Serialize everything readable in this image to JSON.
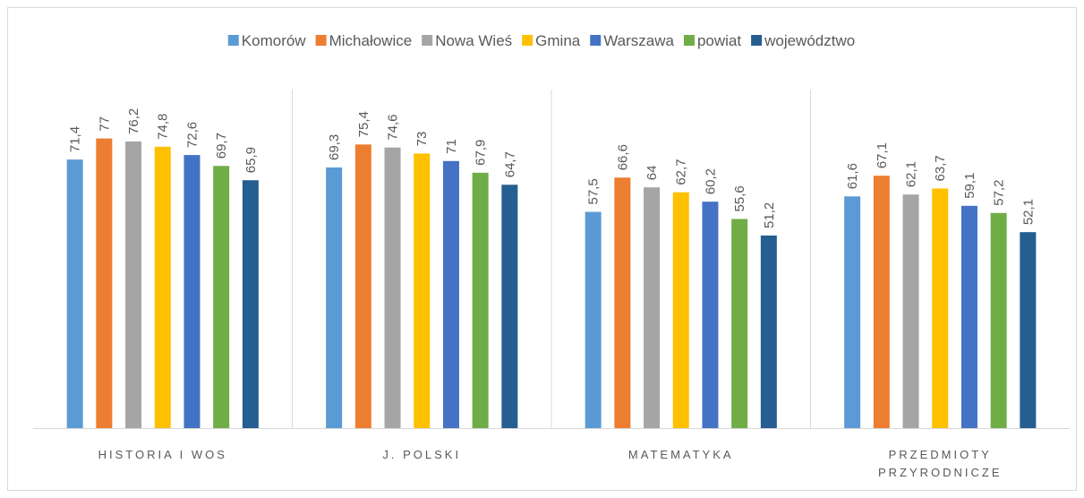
{
  "chart_data": {
    "type": "bar",
    "categories": [
      "HISTORIA I WOS",
      "J. POLSKI",
      "MATEMATYKA",
      "PRZEDMIOTY PRZYRODNICZE"
    ],
    "series": [
      {
        "name": "Komorów",
        "color": "#5b9bd5",
        "values": [
          71.4,
          69.3,
          57.5,
          61.6
        ],
        "value_labels": [
          "71,4",
          "69,3",
          "57,5",
          "61,6"
        ]
      },
      {
        "name": "Michałowice",
        "color": "#ed7d31",
        "values": [
          77,
          75.4,
          66.6,
          67.1
        ],
        "value_labels": [
          "77",
          "75,4",
          "66,6",
          "67,1"
        ]
      },
      {
        "name": "Nowa Wieś",
        "color": "#a5a5a5",
        "values": [
          76.2,
          74.6,
          64,
          62.1
        ],
        "value_labels": [
          "76,2",
          "74,6",
          "64",
          "62,1"
        ]
      },
      {
        "name": "Gmina",
        "color": "#ffc000",
        "values": [
          74.8,
          73,
          62.7,
          63.7
        ],
        "value_labels": [
          "74,8",
          "73",
          "62,7",
          "63,7"
        ]
      },
      {
        "name": "Warszawa",
        "color": "#4472c4",
        "values": [
          72.6,
          71,
          60.2,
          59.1
        ],
        "value_labels": [
          "72,6",
          "71",
          "60,2",
          "59,1"
        ]
      },
      {
        "name": "powiat",
        "color": "#70ad47",
        "values": [
          69.7,
          67.9,
          55.6,
          57.2
        ],
        "value_labels": [
          "69,7",
          "67,9",
          "55,6",
          "57,2"
        ]
      },
      {
        "name": "województwo",
        "color": "#255e91",
        "values": [
          65.9,
          64.7,
          51.2,
          52.1
        ],
        "value_labels": [
          "65,9",
          "64,7",
          "51,2",
          "52,1"
        ]
      }
    ],
    "ylim": [
      0,
      90
    ],
    "legend": "top"
  }
}
